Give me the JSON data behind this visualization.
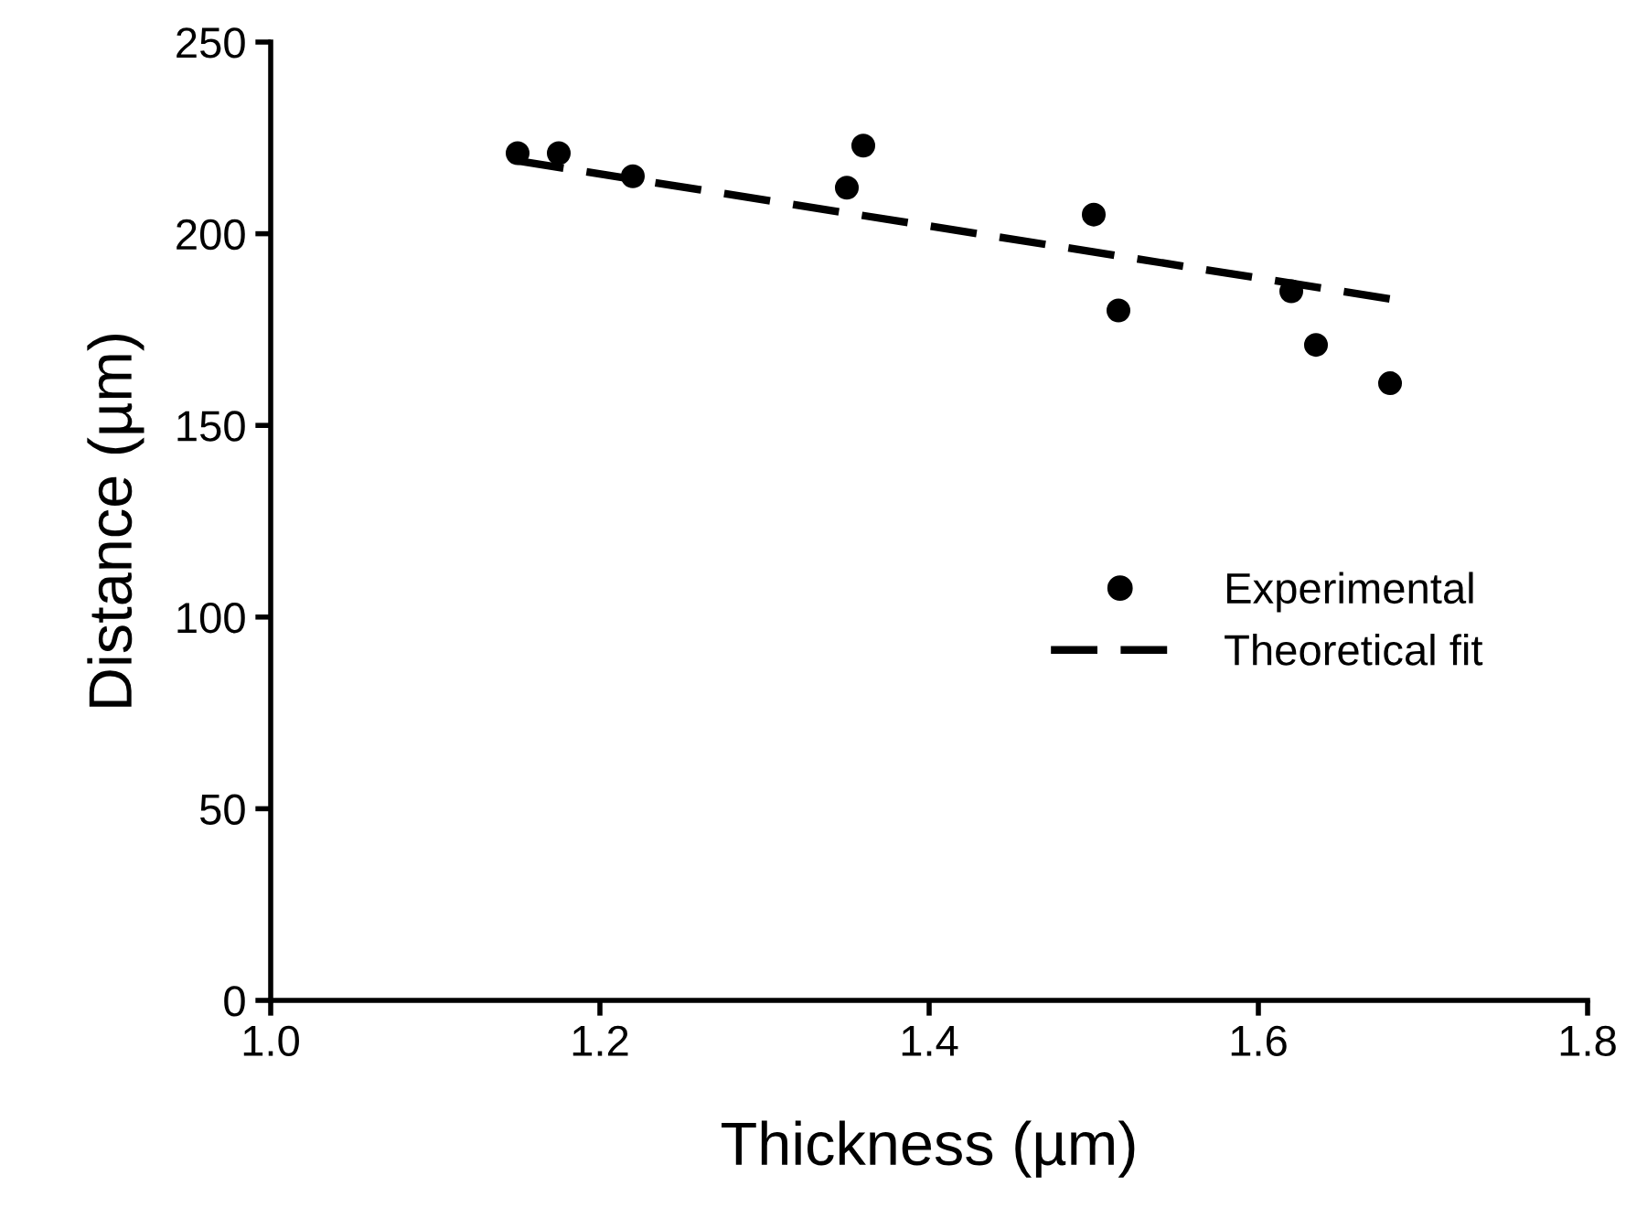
{
  "chart_data": {
    "type": "scatter",
    "xlabel": "Thickness (µm)",
    "ylabel": "Distance (µm)",
    "xlim": [
      1.0,
      1.8
    ],
    "xticks": [
      {
        "value": 1.0,
        "label": "1.0"
      },
      1.2,
      1.4,
      1.6,
      1.8
    ],
    "ylim": [
      0,
      250
    ],
    "yticks": [
      0,
      50,
      100,
      150,
      200,
      250
    ],
    "grid": false,
    "legend": "bottom right",
    "marker": "circle",
    "series": [
      {
        "name": "Experimental",
        "color": "#000000",
        "x": [
          1.15,
          1.175,
          1.22,
          1.35,
          1.36,
          1.5,
          1.515,
          1.62,
          1.635,
          1.68
        ],
        "values": [
          221,
          221,
          215,
          212,
          223,
          205,
          180,
          185,
          171,
          161
        ]
      },
      {
        "name": "Theoretical fit",
        "type": "line",
        "color": "#000000",
        "line_style": "dashed",
        "marker": "none",
        "x": [
          1.15,
          1.68
        ],
        "values": [
          219,
          183
        ]
      }
    ]
  }
}
